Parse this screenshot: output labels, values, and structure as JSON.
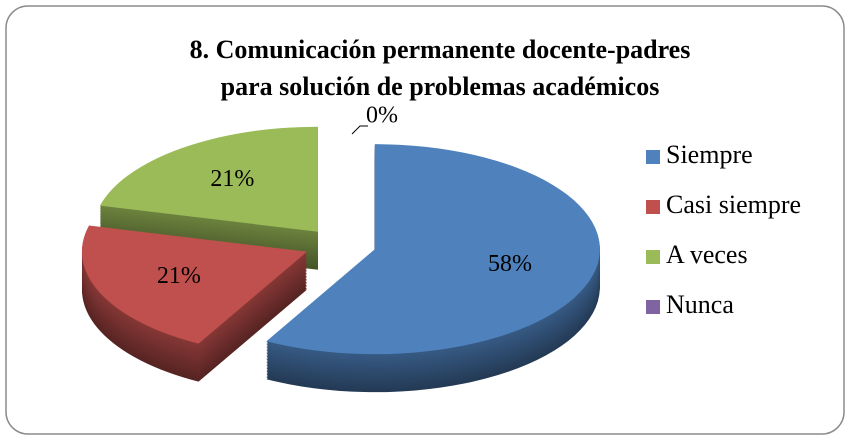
{
  "chart_data": {
    "type": "pie3d",
    "title": [
      "8. Comunicación permanente docente-padres",
      "para solución de problemas académicos"
    ],
    "categories": [
      "Siempre",
      "Casi siempre",
      "A veces",
      "Nunca"
    ],
    "values": [
      58,
      21,
      21,
      0
    ],
    "value_labels": [
      "58%",
      "21%",
      "21%",
      "0%"
    ],
    "colors": [
      "#4f81bd",
      "#c0504d",
      "#9bbb59",
      "#8064a2"
    ],
    "legend": "right"
  }
}
